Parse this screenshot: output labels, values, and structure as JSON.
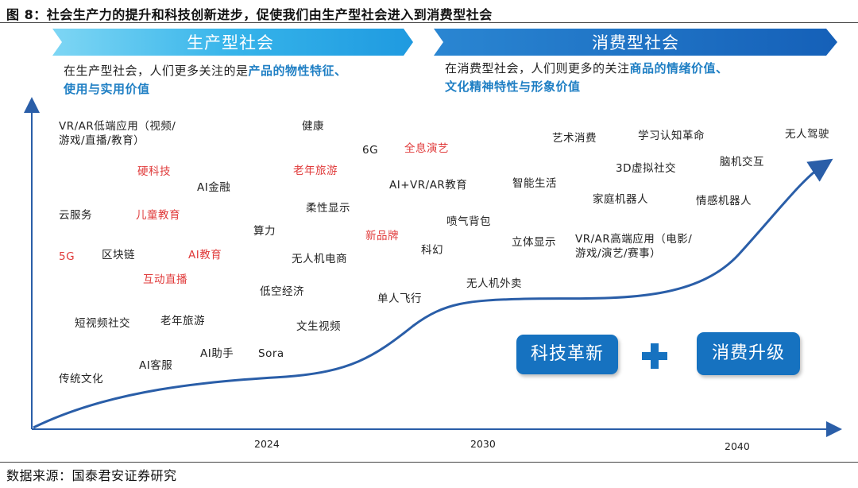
{
  "title": "图 8：社会生产力的提升和科技创新进步，促使我们由生产型社会进入到消费型社会",
  "banners": {
    "left": {
      "title": "生产型社会",
      "desc_plain": "在生产型社会，人们更多关注的是",
      "desc_highlight_1": "产品的物性特征、",
      "desc_highlight_2": "使用与实用价值"
    },
    "right": {
      "title": "消费型社会",
      "desc_plain": "在消费型社会，人们则更多的关注",
      "desc_highlight_1": "商品的情绪价值、",
      "desc_highlight_2": "文化精神特性与形象价值"
    }
  },
  "keywords": {
    "vr_low_1": "VR/AR低端应用（视频/",
    "vr_low_2": "游戏/直播/教育）",
    "jiankang": "健康",
    "sixg": "6G",
    "quanxi": "全息演艺",
    "yingkeji": "硬科技",
    "laonian_red": "老年旅游",
    "ai_jinrong": "AI金融",
    "ai_vr_edu": "AI+VR/AR教育",
    "yunfuwu": "云服务",
    "ertong": "儿童教育",
    "rouxing": "柔性显示",
    "suanli": "算力",
    "xinpinpai": "新品牌",
    "fiveg": "5G",
    "qukuailian": "区块链",
    "ai_jiaoyu": "AI教育",
    "wurenji_ds": "无人机电商",
    "hudong": "互动直播",
    "dikong": "低空经济",
    "duanshipin": "短视频社交",
    "laonian": "老年旅游",
    "wensheng": "文生视频",
    "ai_zhushou": "AI助手",
    "sora": "Sora",
    "ai_kefu": "AI客服",
    "chuantong": "传统文化",
    "penqi": "喷气背包",
    "kehuan": "科幻",
    "danren": "单人飞行",
    "wurenji_ws": "无人机外卖",
    "yishu": "艺术消费",
    "xuexi": "学习认知革命",
    "wuren_jiashi": "无人驾驶",
    "zhineng": "智能生活",
    "sanD": "3D虚拟社交",
    "naoji": "脑机交互",
    "jiating": "家庭机器人",
    "qinggan": "情感机器人",
    "liti": "立体显示",
    "vr_high_1": "VR/AR高端应用（电影/",
    "vr_high_2": "游戏/演艺/赛事）"
  },
  "boxes": {
    "tech": "科技革新",
    "consume": "消费升级",
    "plus_icon": "plus-icon"
  },
  "axis": {
    "ticks": [
      "2024",
      "2030",
      "2040"
    ]
  },
  "source": "数据来源：国泰君安证券研究",
  "colors": {
    "banner_light": "#5ec8f0",
    "banner_dark": "#1a6fc0",
    "box_blue": "#1672c0",
    "curve": "#2a5ea8",
    "highlight_text": "#1f7fc4",
    "red_keyword": "#e03a3a"
  }
}
